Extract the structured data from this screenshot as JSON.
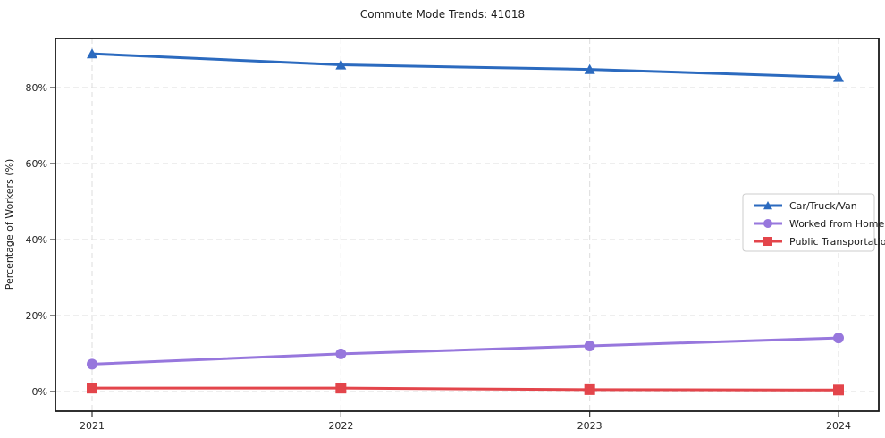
{
  "window": {
    "title": "Commute Mode Trends: 41018"
  },
  "chart_data": {
    "type": "line",
    "title": "Commute Mode Trends: 41018",
    "xlabel": "",
    "ylabel": "Percentage of Workers (%)",
    "categories": [
      "2021",
      "2022",
      "2023",
      "2024"
    ],
    "series": [
      {
        "name": "Car/Truck/Van",
        "marker": "triangle",
        "color": "#2b6abf",
        "values": [
          88.9,
          86.0,
          84.8,
          82.7
        ]
      },
      {
        "name": "Worked from Home",
        "marker": "circle",
        "color": "#9777dd",
        "values": [
          7.2,
          9.9,
          12.0,
          14.1
        ]
      },
      {
        "name": "Public Transportation",
        "marker": "square",
        "color": "#e3454b",
        "values": [
          0.9,
          0.9,
          0.5,
          0.4
        ]
      }
    ],
    "yticks": [
      "0%",
      "20%",
      "40%",
      "60%",
      "80%"
    ],
    "ytick_values": [
      0,
      20,
      40,
      60,
      80
    ],
    "ylim": [
      -5.2,
      93
    ],
    "grid": true,
    "grid_style": "dashed",
    "legend_position": "center-right"
  },
  "colors": {
    "background": "#ffffff",
    "grid": "#dcdcdc",
    "spine": "#1a1a1a",
    "tick": "#333333",
    "tick_label": "#262626",
    "legend_border": "#cccccc",
    "legend_background": "#ffffff"
  }
}
